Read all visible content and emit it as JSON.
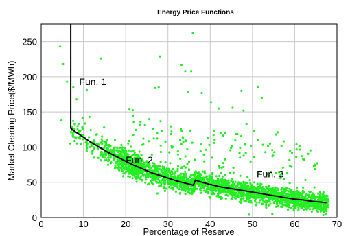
{
  "chart_data": {
    "type": "scatter",
    "title": "Energy Price Functions",
    "xlabel": "Percentage of Reserve",
    "ylabel": "Market Clearing Price($/MWh)",
    "xlim": [
      0,
      70
    ],
    "ylim": [
      0,
      275
    ],
    "x_ticks": [
      "0",
      "10",
      "20",
      "30",
      "40",
      "50",
      "60",
      "70"
    ],
    "y_ticks": [
      "0",
      "50",
      "100",
      "150",
      "200",
      "250"
    ],
    "grid": true,
    "colors": {
      "scatter": "#22ee22",
      "curve": "#000000",
      "grid": "#c8c8c8"
    },
    "annotations": [
      {
        "text": "Fun. 1",
        "x": 9,
        "y": 188
      },
      {
        "text": "Fun. 2",
        "x": 20,
        "y": 77
      },
      {
        "text": "Fun. 3",
        "x": 51,
        "y": 57
      }
    ],
    "series": [
      {
        "type": "scatter",
        "points": [
          [
            4.5,
            243
          ],
          [
            5.2,
            218
          ],
          [
            4.8,
            138
          ],
          [
            6.1,
            193
          ],
          [
            7.6,
            185
          ],
          [
            7.2,
            127
          ],
          [
            8.4,
            168
          ],
          [
            9.2,
            112
          ],
          [
            9.8,
            141
          ],
          [
            10.8,
            181
          ],
          [
            11.4,
            143
          ],
          [
            14.2,
            226
          ],
          [
            14.9,
            128
          ],
          [
            11.6,
            100
          ],
          [
            12.2,
            95
          ],
          [
            6.9,
            105
          ],
          [
            7.5,
            115
          ],
          [
            28.1,
            229
          ],
          [
            27.0,
            184
          ],
          [
            27.8,
            185
          ],
          [
            35.9,
            262
          ],
          [
            33.2,
            217
          ],
          [
            34.1,
            208
          ],
          [
            35.5,
            208
          ],
          [
            34.8,
            178
          ],
          [
            38.0,
            177
          ],
          [
            40.2,
            164
          ],
          [
            42.0,
            155
          ],
          [
            45.3,
            156
          ],
          [
            47.4,
            180
          ],
          [
            47.9,
            152
          ],
          [
            50.3,
            123
          ],
          [
            51.3,
            185
          ],
          [
            52.2,
            170
          ],
          [
            55.6,
            118
          ],
          [
            56.0,
            121
          ],
          [
            48.6,
            133
          ],
          [
            53.7,
            101
          ],
          [
            23.5,
            136
          ],
          [
            24.2,
            112
          ],
          [
            20.6,
            105
          ],
          [
            22.8,
            86
          ],
          [
            16.4,
            92
          ],
          [
            58.9,
            95
          ],
          [
            62.0,
            83
          ],
          [
            65.3,
            77
          ],
          [
            54.7,
            5
          ],
          [
            59.8,
            10
          ],
          [
            63.6,
            12
          ],
          [
            67.0,
            8
          ],
          [
            49.2,
            4
          ]
        ]
      },
      {
        "type": "line",
        "name": "",
        "points": [
          [
            7,
            275
          ],
          [
            7,
            127
          ],
          [
            8,
            122
          ],
          [
            10,
            114
          ],
          [
            12,
            106
          ],
          [
            14,
            99
          ],
          [
            16,
            92
          ],
          [
            18,
            86
          ],
          [
            20,
            80
          ],
          [
            22,
            74
          ],
          [
            24,
            69
          ],
          [
            26,
            64
          ],
          [
            28,
            60
          ],
          [
            30,
            56
          ],
          [
            32,
            52
          ],
          [
            34,
            49
          ],
          [
            36,
            46
          ],
          [
            36.5,
            53
          ],
          [
            38,
            50
          ],
          [
            40,
            47
          ],
          [
            42,
            44
          ],
          [
            44,
            42
          ],
          [
            46,
            40
          ],
          [
            48,
            38
          ],
          [
            50,
            36
          ],
          [
            52,
            34
          ],
          [
            54,
            32
          ],
          [
            56,
            30
          ],
          [
            58,
            28
          ],
          [
            60,
            26
          ],
          [
            62,
            25
          ],
          [
            64,
            23
          ],
          [
            66,
            22
          ],
          [
            67.5,
            21
          ]
        ]
      }
    ]
  }
}
